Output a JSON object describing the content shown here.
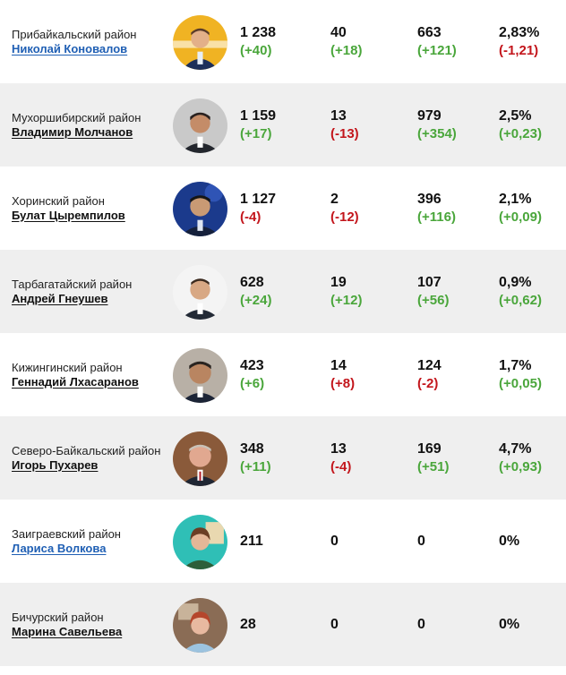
{
  "colors": {
    "positive": "#4aa63b",
    "negative": "#c3161c",
    "link": "#1f5fb4",
    "row_alt": "#efefef"
  },
  "rows": [
    {
      "district": "Прибайкальский район",
      "leader": "Николай Коновалов",
      "c1": {
        "value": "1 238",
        "delta": "(+40)"
      },
      "c2": {
        "value": "40",
        "delta": "(+18)"
      },
      "c3": {
        "value": "663",
        "delta": "(+121)"
      },
      "c4": {
        "value": "2,83%",
        "delta": "(-1,21)"
      }
    },
    {
      "district": "Мухоршибирский район",
      "leader": "Владимир Молчанов",
      "c1": {
        "value": "1 159",
        "delta": "(+17)"
      },
      "c2": {
        "value": "13",
        "delta": "(-13)"
      },
      "c3": {
        "value": "979",
        "delta": "(+354)"
      },
      "c4": {
        "value": "2,5%",
        "delta": "(+0,23)"
      }
    },
    {
      "district": "Хоринский район",
      "leader": "Булат Цыремпилов",
      "c1": {
        "value": "1 127",
        "delta": "(-4)"
      },
      "c2": {
        "value": "2",
        "delta": "(-12)"
      },
      "c3": {
        "value": "396",
        "delta": "(+116)"
      },
      "c4": {
        "value": "2,1%",
        "delta": "(+0,09)"
      }
    },
    {
      "district": "Тарбагатайский район",
      "leader": "Андрей Гнеушев",
      "c1": {
        "value": "628",
        "delta": "(+24)"
      },
      "c2": {
        "value": "19",
        "delta": "(+12)"
      },
      "c3": {
        "value": "107",
        "delta": "(+56)"
      },
      "c4": {
        "value": "0,9%",
        "delta": "(+0,62)"
      }
    },
    {
      "district": "Кижингинский район",
      "leader": "Геннадий Лхасаранов",
      "c1": {
        "value": "423",
        "delta": "(+6)"
      },
      "c2": {
        "value": "14",
        "delta": "(+8)"
      },
      "c3": {
        "value": "124",
        "delta": "(-2)"
      },
      "c4": {
        "value": "1,7%",
        "delta": "(+0,05)"
      }
    },
    {
      "district": "Северо-Байкальский район",
      "leader": "Игорь Пухарев",
      "c1": {
        "value": "348",
        "delta": "(+11)"
      },
      "c2": {
        "value": "13",
        "delta": "(-4)"
      },
      "c3": {
        "value": "169",
        "delta": "(+51)"
      },
      "c4": {
        "value": "4,7%",
        "delta": "(+0,93)"
      }
    },
    {
      "district": "Заиграевский район",
      "leader": "Лариса Волкова",
      "c1": {
        "value": "211",
        "delta": ""
      },
      "c2": {
        "value": "0",
        "delta": ""
      },
      "c3": {
        "value": "0",
        "delta": ""
      },
      "c4": {
        "value": "0%",
        "delta": ""
      }
    },
    {
      "district": "Бичурский район",
      "leader": "Марина Савельева",
      "c1": {
        "value": "28",
        "delta": ""
      },
      "c2": {
        "value": "0",
        "delta": ""
      },
      "c3": {
        "value": "0",
        "delta": ""
      },
      "c4": {
        "value": "0%",
        "delta": ""
      }
    }
  ]
}
